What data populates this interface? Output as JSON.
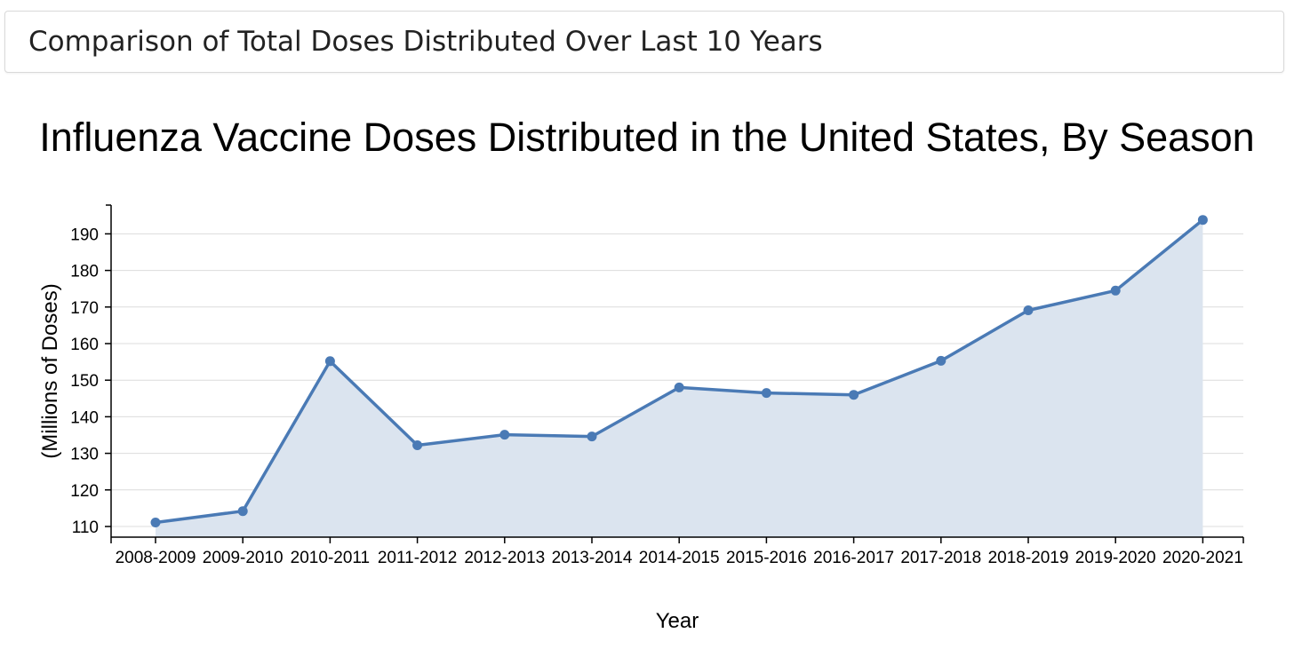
{
  "header": {
    "title": "Comparison of Total Doses Distributed Over Last 10 Years"
  },
  "colors": {
    "line": "#4a7ab5",
    "area": "#dbe4ef",
    "point": "#4a7ab5",
    "grid": "#dcdcdc"
  },
  "chart_data": {
    "type": "area",
    "title": "Influenza Vaccine Doses Distributed in the United States, By Season",
    "xlabel": "Year",
    "ylabel": "(Millions of Doses)",
    "categories": [
      "2008-2009",
      "2009-2010",
      "2010-2011",
      "2011-2012",
      "2012-2013",
      "2013-2014",
      "2014-2015",
      "2015-2016",
      "2016-2017",
      "2017-2018",
      "2018-2019",
      "2019-2020",
      "2020-2021"
    ],
    "values": [
      111.1,
      114.2,
      155.2,
      132.2,
      135.1,
      134.6,
      148.0,
      146.5,
      146.0,
      155.3,
      169.1,
      174.5,
      193.8
    ],
    "yticks": [
      110,
      120,
      130,
      140,
      150,
      160,
      170,
      180,
      190
    ],
    "ylim": [
      107,
      198
    ],
    "grid": true,
    "markers": true,
    "legend": "none"
  }
}
